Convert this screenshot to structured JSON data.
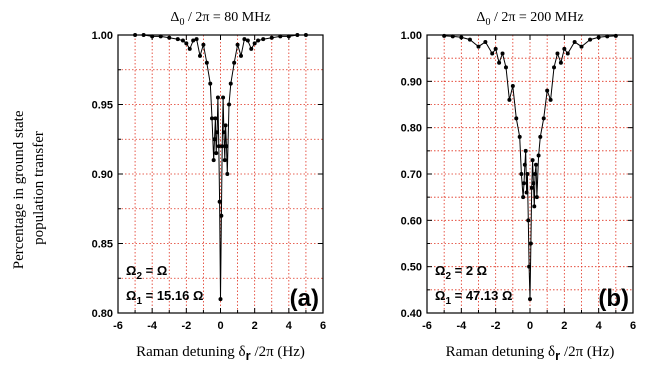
{
  "ylabel_line1": "Percentage in ground state",
  "ylabel_line2": "population transfer",
  "chart_data": [
    {
      "type": "line",
      "panel_tag": "(a)",
      "title": "Δ0 / 2π = 80 MHz",
      "title_main": "Δ",
      "title_sub": "0",
      "title_rest": " / 2π = 80 MHz",
      "xlabel_main": "Raman detuning δ",
      "xlabel_sub": "r",
      "xlabel_rest": " /2π  (Hz)",
      "xlim": [
        -6,
        6
      ],
      "ylim": [
        0.8,
        1.0
      ],
      "xticks": [
        -6,
        -4,
        -2,
        0,
        2,
        4,
        6
      ],
      "yticks": [
        "0.80",
        "0.85",
        "0.90",
        "0.95",
        "1.00"
      ],
      "grid": true,
      "annotations": [
        {
          "main": "Ω",
          "sub": "2",
          "rest": " = Ω"
        },
        {
          "main": "Ω",
          "sub": "1",
          "rest": " = 15.16 Ω"
        }
      ],
      "x": [
        -5.0,
        -4.5,
        -4.0,
        -3.5,
        -3.0,
        -2.5,
        -2.2,
        -2.0,
        -1.8,
        -1.6,
        -1.4,
        -1.2,
        -1.0,
        -0.8,
        -0.6,
        -0.5,
        -0.4,
        -0.35,
        -0.3,
        -0.25,
        -0.2,
        -0.15,
        -0.1,
        -0.05,
        0.0,
        0.05,
        0.1,
        0.15,
        0.2,
        0.25,
        0.3,
        0.35,
        0.4,
        0.5,
        0.6,
        0.8,
        1.0,
        1.2,
        1.4,
        1.6,
        1.8,
        2.0,
        2.2,
        2.5,
        3.0,
        3.5,
        4.0,
        4.5,
        5.0
      ],
      "y": [
        1.0,
        1.0,
        0.999,
        0.999,
        0.998,
        0.997,
        0.996,
        0.994,
        0.99,
        0.996,
        0.997,
        0.985,
        0.993,
        0.98,
        0.965,
        0.94,
        0.91,
        0.925,
        0.94,
        0.915,
        0.93,
        0.955,
        0.92,
        0.88,
        0.81,
        0.87,
        0.92,
        0.955,
        0.93,
        0.91,
        0.935,
        0.92,
        0.9,
        0.95,
        0.965,
        0.98,
        0.993,
        0.985,
        0.997,
        0.996,
        0.99,
        0.994,
        0.996,
        0.997,
        0.998,
        0.999,
        0.999,
        1.0,
        1.0
      ]
    },
    {
      "type": "line",
      "panel_tag": "(b)",
      "title": "Δ0 / 2π = 200 MHz",
      "title_main": "Δ",
      "title_sub": "0",
      "title_rest": " / 2π = 200 MHz",
      "xlabel_main": "Raman detuning δ",
      "xlabel_sub": "r",
      "xlabel_rest": " /2π  (Hz)",
      "xlim": [
        -6,
        6
      ],
      "ylim": [
        0.4,
        1.0
      ],
      "xticks": [
        -6,
        -4,
        -2,
        0,
        2,
        4,
        6
      ],
      "yticks": [
        "0.40",
        "0.50",
        "0.60",
        "0.70",
        "0.80",
        "0.90",
        "1.00"
      ],
      "grid": true,
      "annotations": [
        {
          "main": "Ω",
          "sub": "2",
          "rest": " = 2 Ω"
        },
        {
          "main": "Ω",
          "sub": "1",
          "rest": " = 47.13 Ω"
        }
      ],
      "x": [
        -5.0,
        -4.5,
        -4.0,
        -3.5,
        -3.0,
        -2.6,
        -2.2,
        -2.0,
        -1.8,
        -1.6,
        -1.4,
        -1.2,
        -1.0,
        -0.8,
        -0.6,
        -0.5,
        -0.4,
        -0.35,
        -0.3,
        -0.25,
        -0.2,
        -0.15,
        -0.1,
        -0.05,
        0.0,
        0.05,
        0.1,
        0.15,
        0.2,
        0.25,
        0.3,
        0.35,
        0.4,
        0.5,
        0.6,
        0.8,
        1.0,
        1.2,
        1.4,
        1.6,
        1.8,
        2.0,
        2.2,
        2.6,
        3.0,
        3.5,
        4.0,
        4.5,
        5.0
      ],
      "y": [
        0.998,
        0.997,
        0.995,
        0.99,
        0.975,
        0.985,
        0.96,
        0.97,
        0.94,
        0.96,
        0.93,
        0.86,
        0.89,
        0.82,
        0.78,
        0.7,
        0.65,
        0.68,
        0.72,
        0.75,
        0.66,
        0.7,
        0.6,
        0.5,
        0.43,
        0.55,
        0.67,
        0.73,
        0.68,
        0.63,
        0.7,
        0.72,
        0.65,
        0.74,
        0.78,
        0.82,
        0.88,
        0.86,
        0.93,
        0.96,
        0.94,
        0.97,
        0.96,
        0.985,
        0.975,
        0.99,
        0.995,
        0.997,
        0.998
      ]
    }
  ]
}
